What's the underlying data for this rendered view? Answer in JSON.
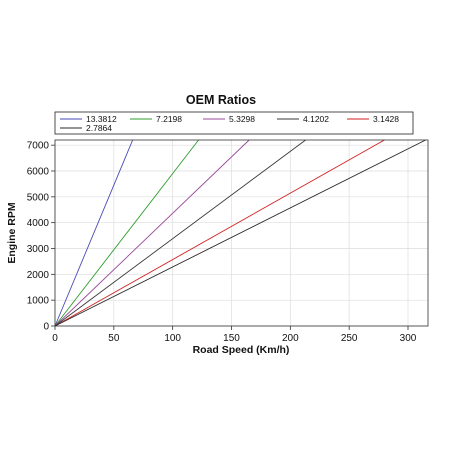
{
  "chart_data": {
    "type": "line",
    "title": "OEM Ratios",
    "xlabel": "Road Speed (Km/h)",
    "ylabel": "Engine RPM",
    "xlim": [
      0,
      317
    ],
    "ylim": [
      0,
      7200
    ],
    "xticks": [
      0,
      50,
      100,
      150,
      200,
      250,
      300
    ],
    "yticks": [
      0,
      1000,
      2000,
      3000,
      4000,
      5000,
      6000,
      7000
    ],
    "grid": true,
    "legend_position": "top",
    "series": [
      {
        "name": "13.3812",
        "color": "#4a4ab8",
        "x": [
          0,
          66
        ],
        "y": [
          0,
          7200
        ]
      },
      {
        "name": "7.2198",
        "color": "#2e9e2e",
        "x": [
          0,
          122
        ],
        "y": [
          0,
          7200
        ]
      },
      {
        "name": "5.3298",
        "color": "#9a4a9a",
        "x": [
          0,
          165
        ],
        "y": [
          0,
          7200
        ]
      },
      {
        "name": "4.1202",
        "color": "#3a3a3a",
        "x": [
          0,
          213
        ],
        "y": [
          0,
          7200
        ]
      },
      {
        "name": "3.1428",
        "color": "#d02020",
        "x": [
          0,
          280
        ],
        "y": [
          0,
          7200
        ]
      },
      {
        "name": "2.7864",
        "color": "#2a2a2a",
        "x": [
          0,
          315
        ],
        "y": [
          0,
          7200
        ]
      }
    ]
  }
}
